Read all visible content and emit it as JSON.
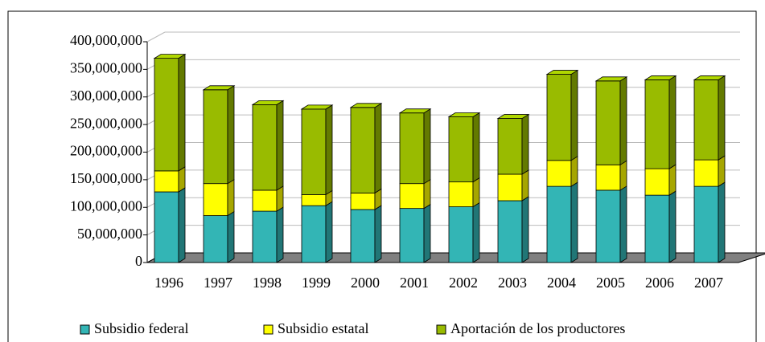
{
  "chart_data": {
    "type": "bar3d_stacked",
    "categories": [
      "1996",
      "1997",
      "1998",
      "1999",
      "2000",
      "2001",
      "2002",
      "2003",
      "2004",
      "2005",
      "2006",
      "2007"
    ],
    "series": [
      {
        "name": "Subsidio federal",
        "color": "#33b5b5",
        "values": [
          128000000,
          85000000,
          93000000,
          103000000,
          96000000,
          98000000,
          101000000,
          112000000,
          138000000,
          131000000,
          122000000,
          138000000
        ]
      },
      {
        "name": "Subsidio estatal",
        "color": "#ffff00",
        "values": [
          38000000,
          58000000,
          38000000,
          20000000,
          30000000,
          45000000,
          45000000,
          48000000,
          47000000,
          46000000,
          48000000,
          48000000
        ]
      },
      {
        "name": "Aportación de los productores",
        "color": "#99bb00",
        "values": [
          204000000,
          170000000,
          155000000,
          155000000,
          155000000,
          128000000,
          118000000,
          101000000,
          156000000,
          152000000,
          161000000,
          145000000
        ]
      }
    ],
    "ylim": [
      0,
      400000000
    ],
    "yticks": [
      {
        "value": 0,
        "label": "0"
      },
      {
        "value": 50000000,
        "label": "50,000,000"
      },
      {
        "value": 100000000,
        "label": "100,000,000"
      },
      {
        "value": 150000000,
        "label": "150,000,000"
      },
      {
        "value": 200000000,
        "label": "200,000,000"
      },
      {
        "value": 250000000,
        "label": "250,000,000"
      },
      {
        "value": 300000000,
        "label": "300,000,000"
      },
      {
        "value": 350000000,
        "label": "350,000,000"
      },
      {
        "value": 400000000,
        "label": "400,000,000"
      }
    ],
    "grid": true,
    "legend": "bottom"
  }
}
